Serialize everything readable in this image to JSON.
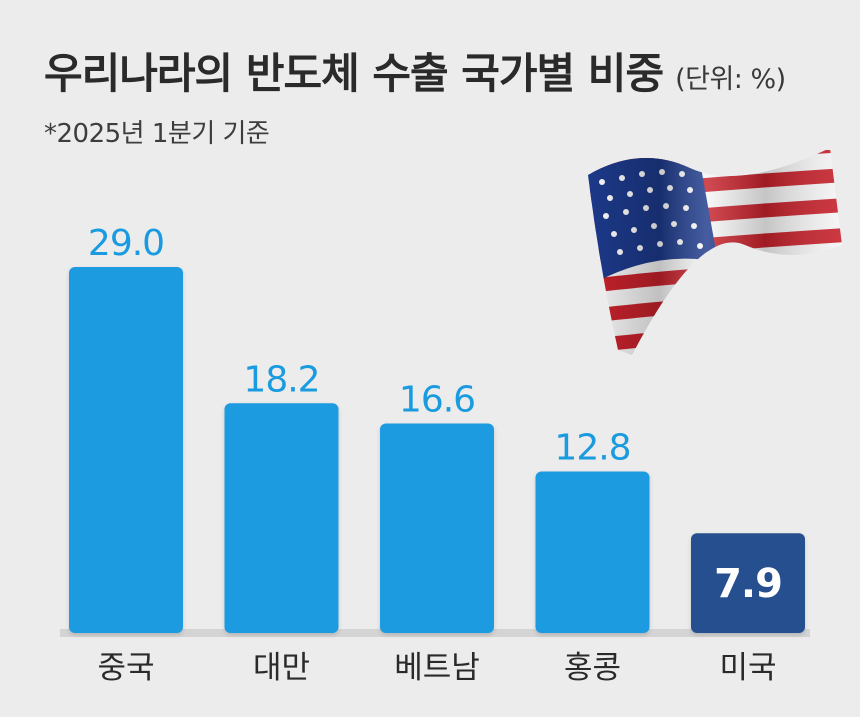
{
  "header": {
    "title": "우리나라의 반도체 수출 국가별 비중",
    "unit": "(단위: %)",
    "subtitle": "*2025년 1분기 기준"
  },
  "colors": {
    "bar_default": "#1a9be0",
    "bar_highlight": "#27508f",
    "label_default": "#1a9be0",
    "label_highlight": "#ffffff",
    "category_text": "#2a2a2a"
  },
  "chart_data": {
    "type": "bar",
    "categories": [
      "중국",
      "대만",
      "베트남",
      "홍콩",
      "미국"
    ],
    "values": [
      29.0,
      18.2,
      16.6,
      12.8,
      7.9
    ],
    "value_labels": [
      "29.0",
      "18.2",
      "16.6",
      "12.8",
      "7.9"
    ],
    "highlight_index": 4,
    "ylim": [
      0,
      29.0
    ],
    "grid": false
  },
  "decoration": {
    "icon": "us-flag-icon"
  }
}
